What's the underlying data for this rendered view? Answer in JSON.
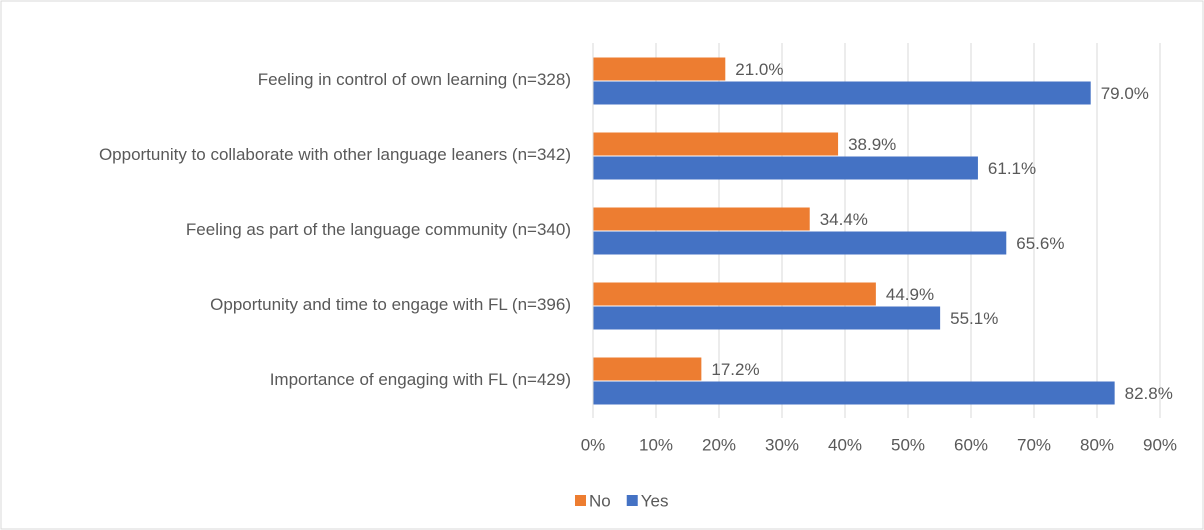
{
  "chart_data": {
    "type": "hbar",
    "categories": [
      "Feeling in control of own learning (n=328)",
      "Opportunity to collaborate with other language leaners (n=342)",
      "Feeling as part of the language community (n=340)",
      "Opportunity and time to engage with FL (n=396)",
      "Importance of engaging with FL (n=429)"
    ],
    "series": [
      {
        "name": "No",
        "color": "#ed7d31",
        "values": [
          21.0,
          38.9,
          34.4,
          44.9,
          17.2
        ],
        "value_labels": [
          "21.0%",
          "38.9%",
          "34.4%",
          "44.9%",
          "17.2%"
        ]
      },
      {
        "name": "Yes",
        "color": "#4472c4",
        "values": [
          79.0,
          61.1,
          65.6,
          55.1,
          82.8
        ],
        "value_labels": [
          "79.0%",
          "61.1%",
          "65.6%",
          "55.1%",
          "82.8%"
        ]
      }
    ],
    "xlim": [
      0,
      90
    ],
    "xticks": [
      {
        "value": 0,
        "label": "0%"
      },
      {
        "value": 10,
        "label": "10%"
      },
      {
        "value": 20,
        "label": "20%"
      },
      {
        "value": 30,
        "label": "30%"
      },
      {
        "value": 40,
        "label": "40%"
      },
      {
        "value": 50,
        "label": "50%"
      },
      {
        "value": 60,
        "label": "60%"
      },
      {
        "value": 70,
        "label": "70%"
      },
      {
        "value": 80,
        "label": "80%"
      },
      {
        "value": 90,
        "label": "90%"
      }
    ],
    "grid": true,
    "legend": "bottom"
  }
}
